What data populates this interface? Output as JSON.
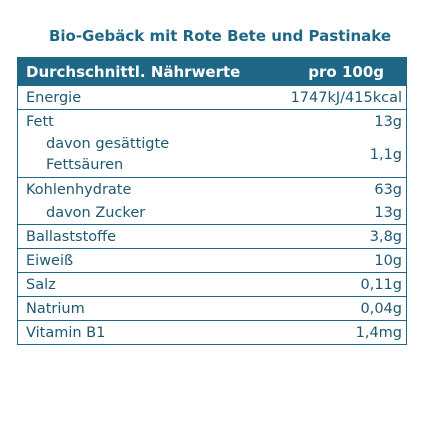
{
  "title": "Bio-Gebäck mit Rote Bete und Pastinake",
  "table": {
    "header_label": "Durchschnittl. Nährwerte",
    "header_value": "pro 100g",
    "energy": {
      "label": "Energie",
      "value": "1747kJ/415kcal"
    },
    "fat": {
      "label": "Fett",
      "value": "13g"
    },
    "saturated": {
      "label_line1": "davon gesättigte",
      "label_line2": "Fettsäuren",
      "value": "1,1g"
    },
    "carbs": {
      "label": "Kohlenhydrate",
      "value": "63g"
    },
    "sugar": {
      "label": "davon Zucker",
      "value": "13g"
    },
    "fiber": {
      "label": "Ballaststoffe",
      "value": "3,8g"
    },
    "protein": {
      "label": "Eiweiß",
      "value": "10g"
    },
    "salt": {
      "label": "Salz",
      "value": "0,11g"
    },
    "sodium": {
      "label": "Natrium",
      "value": "0,04g"
    },
    "vitamin_b1": {
      "label": "Vitamin B1",
      "value": "1,4mg"
    }
  },
  "colors": {
    "accent": "#1f6787",
    "text": "#1f5873",
    "background": "#ffffff"
  }
}
